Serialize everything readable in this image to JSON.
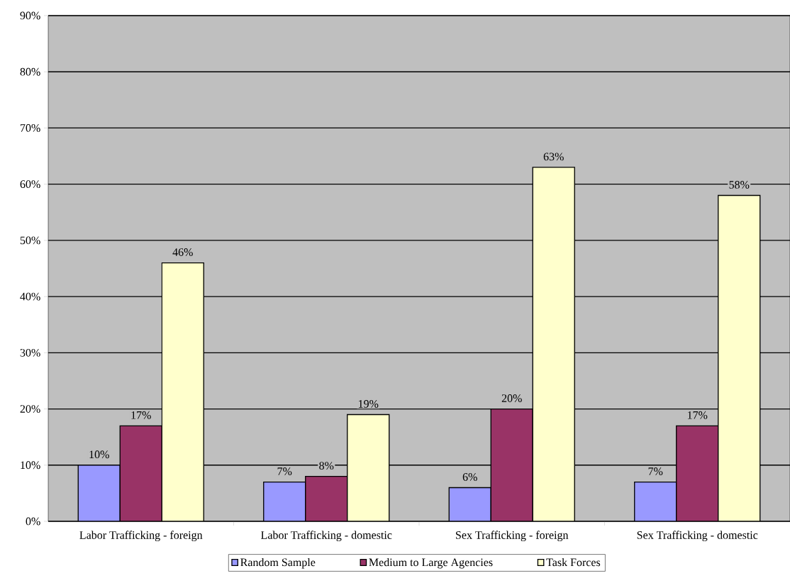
{
  "chart_data": {
    "type": "bar",
    "categories": [
      "Labor Trafficking - foreign",
      "Labor Trafficking - domestic",
      "Sex Trafficking - foreign",
      "Sex Trafficking - domestic"
    ],
    "series": [
      {
        "name": "Random Sample",
        "color": "#9999ff",
        "values": [
          10,
          7,
          6,
          7
        ],
        "value_labels": [
          "10%",
          "7%",
          "6%",
          "7%"
        ]
      },
      {
        "name": "Medium to Large Agencies",
        "color": "#993366",
        "values": [
          17,
          8,
          20,
          17
        ],
        "value_labels": [
          "17%",
          "8%",
          "20%",
          "17%"
        ]
      },
      {
        "name": "Task Forces",
        "color": "#ffffcc",
        "values": [
          46,
          19,
          63,
          58
        ],
        "value_labels": [
          "46%",
          "19%",
          "63%",
          "58%"
        ]
      }
    ],
    "ylim": [
      0,
      90
    ],
    "yticks": [
      {
        "value": 0,
        "label": "0%"
      },
      {
        "value": 10,
        "label": "10%"
      },
      {
        "value": 20,
        "label": "20%"
      },
      {
        "value": 30,
        "label": "30%"
      },
      {
        "value": 40,
        "label": "40%"
      },
      {
        "value": 50,
        "label": "50%"
      },
      {
        "value": 60,
        "label": "60%"
      },
      {
        "value": 70,
        "label": "70%"
      },
      {
        "value": 80,
        "label": "80%"
      },
      {
        "value": 90,
        "label": "90%"
      }
    ],
    "grid": "y",
    "legend": "bottom"
  }
}
